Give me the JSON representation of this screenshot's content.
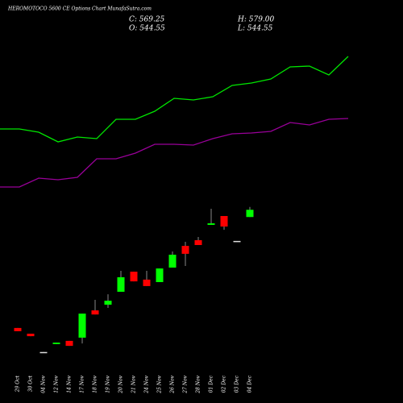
{
  "chart_data": {
    "type": "candlestick",
    "title": "HEROMOTOCO 5600 CE Options Chart MunafaSutra.com",
    "stats": [
      "C: 569.25",
      "H: 579.00",
      "O: 544.55",
      "L: 544.55"
    ],
    "categories": [
      "29 Oct",
      "30 Oct",
      "04 Nov",
      "12 Nov",
      "14 Nov",
      "17 Nov",
      "18 Nov",
      "19 Nov",
      "20 Nov",
      "21 Nov",
      "24 Nov",
      "25 Nov",
      "26 Nov",
      "27 Nov",
      "28 Nov",
      "01 Dec",
      "02 Dec",
      "03 Dec",
      "04 Dec"
    ],
    "open": [
      166,
      146.5,
      84,
      111,
      122,
      133,
      226,
      245.5,
      289.5,
      358,
      331,
      322.5,
      372,
      446,
      465.5,
      517.75,
      548,
      463,
      544.55
    ],
    "high": [
      166,
      146.5,
      84,
      116,
      122,
      215,
      262,
      281,
      361,
      358,
      361,
      369,
      427,
      460,
      476.5,
      572.75,
      548,
      463,
      579
    ],
    "low": [
      155,
      138,
      83,
      111,
      105,
      113,
      212,
      234.5,
      289.5,
      325,
      309,
      322.5,
      372,
      377.5,
      449,
      517.75,
      501,
      463,
      544.55
    ],
    "close": [
      155,
      138,
      83,
      116,
      105,
      215,
      212,
      259,
      339,
      325,
      309,
      369,
      416,
      419,
      449,
      523,
      512,
      463,
      569.25
    ],
    "up_color": "#00ff00",
    "down_color": "#ff0000",
    "doji_color": "#dddddd",
    "series": [
      {
        "color": "#00e600",
        "values": [
          845,
          845,
          834,
          801,
          817.5,
          812,
          878,
          878,
          905.5,
          949.5,
          944,
          955,
          993.5,
          1001.75,
          1015.5,
          1056.75,
          1059.5,
          1029.25,
          1092.5
        ]
      },
      {
        "color": "#990099",
        "values": [
          647,
          647,
          677.25,
          671.75,
          680,
          743.25,
          743.25,
          762.5,
          792.75,
          792.75,
          790,
          812,
          828.5,
          831.25,
          836.75,
          867,
          858.75,
          878,
          880.75
        ]
      }
    ],
    "ylim": [
      20,
      1175
    ]
  }
}
